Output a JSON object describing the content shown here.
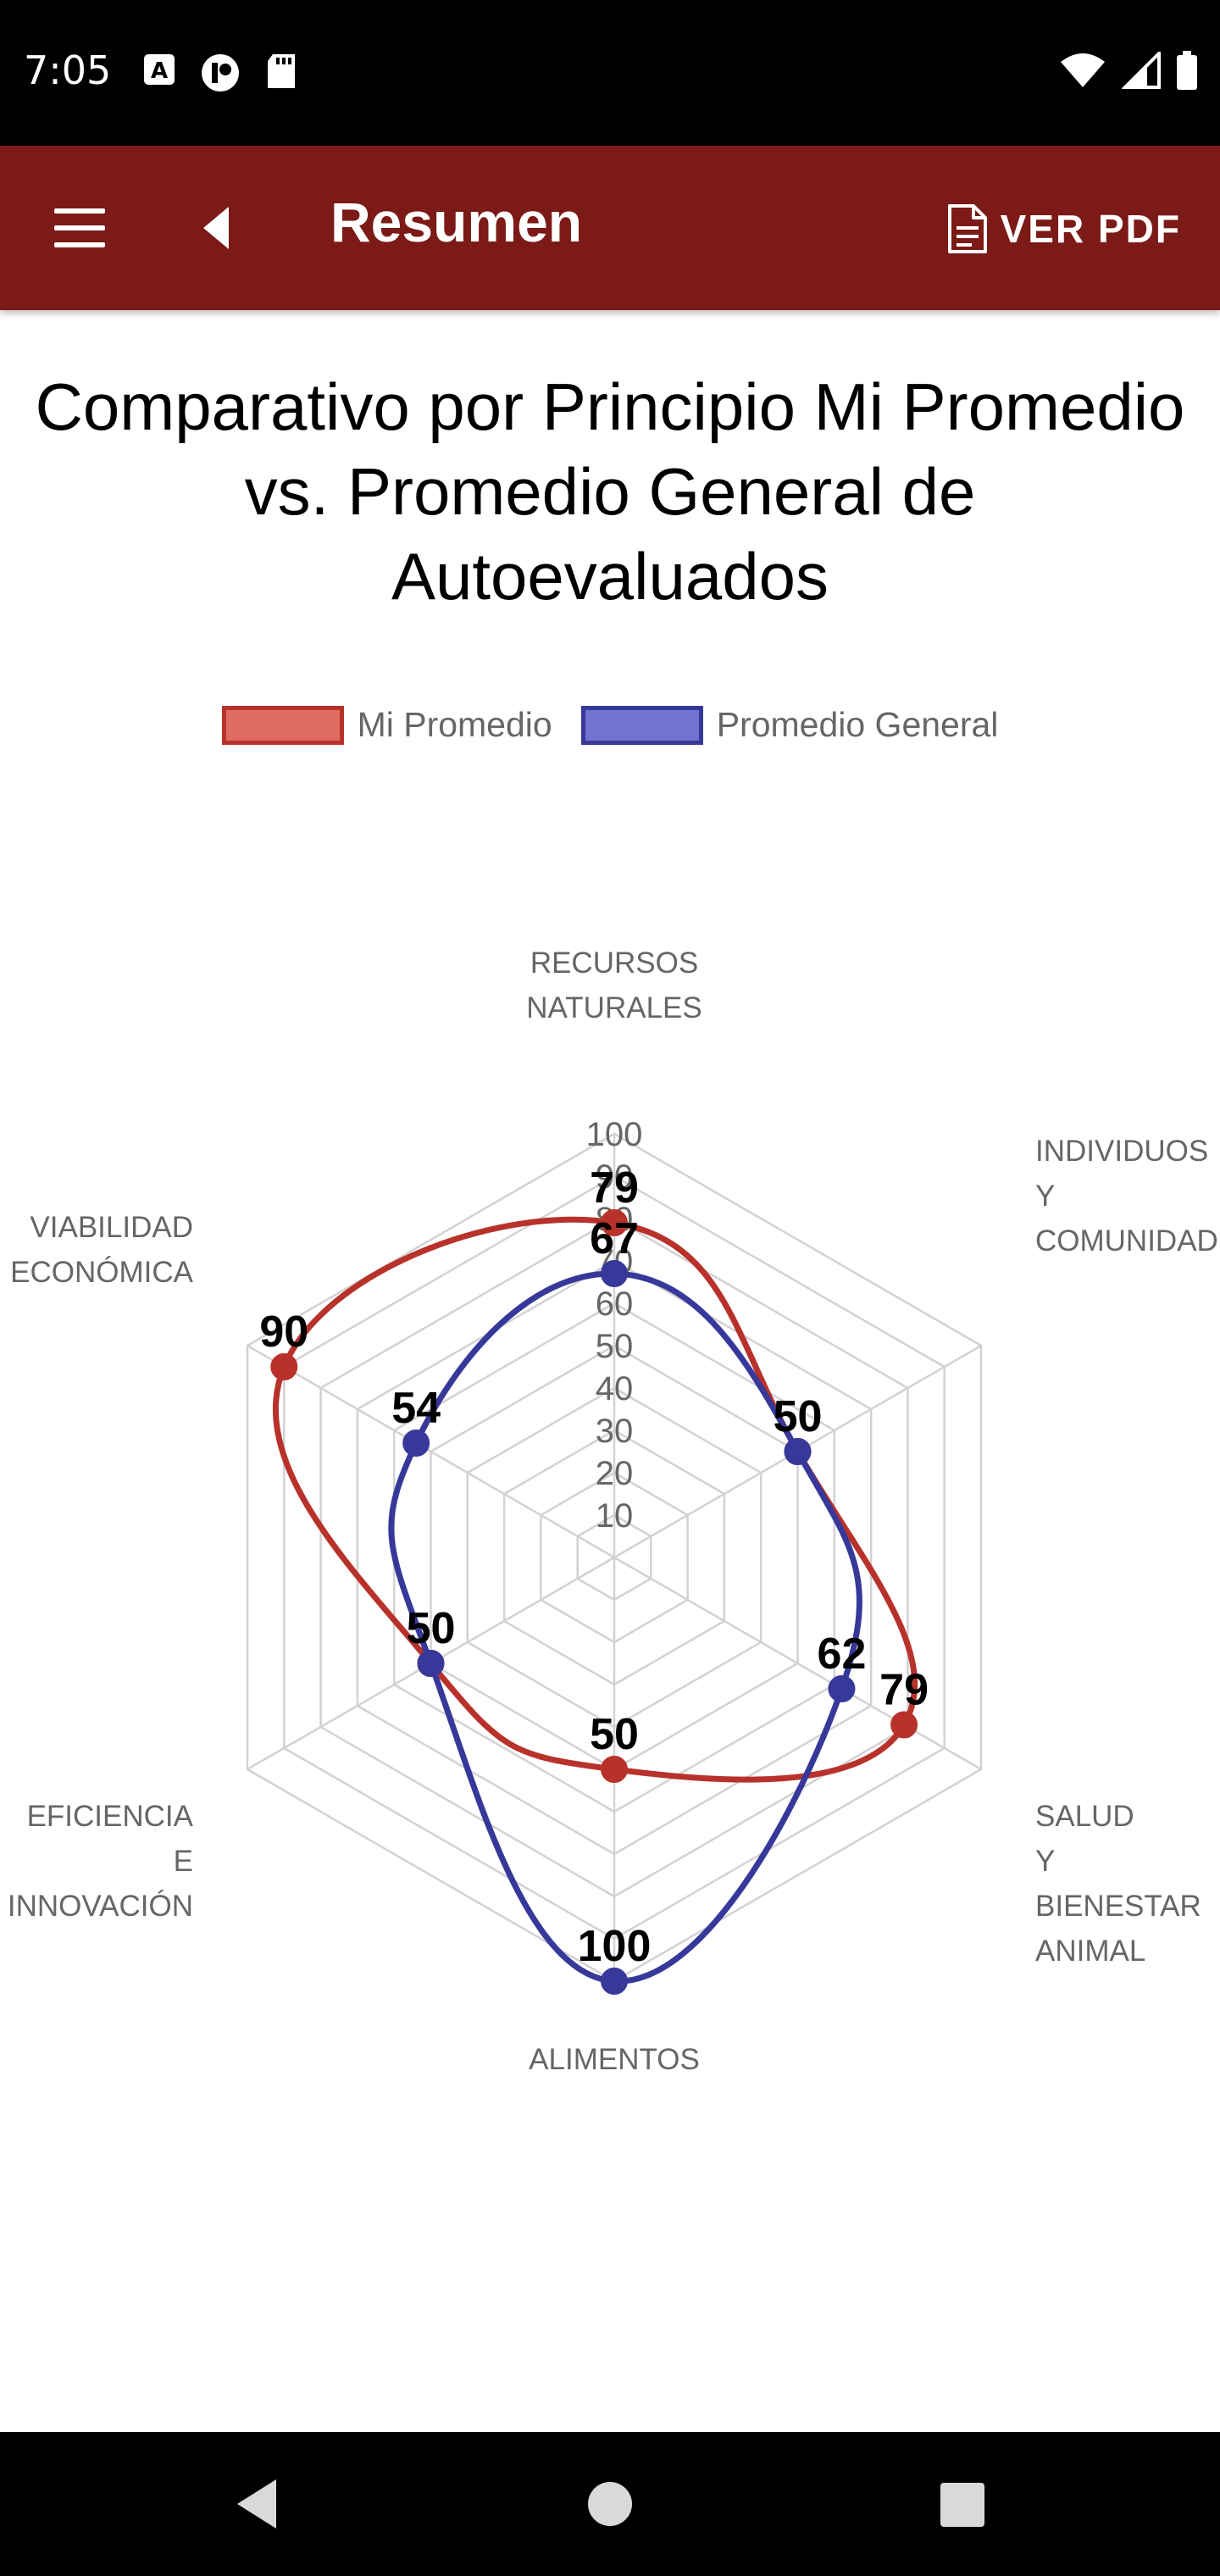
{
  "status_bar": {
    "time": "7:05",
    "left_icons": [
      "font-icon",
      "media-icon",
      "sd-card-icon"
    ],
    "right_icons": [
      "wifi-icon",
      "signal-icon",
      "battery-icon"
    ]
  },
  "app_bar": {
    "title": "Resumen",
    "pdf_label": "VER PDF",
    "background": "#7b1a17"
  },
  "chart_data": {
    "type": "radar",
    "title": "Comparativo por Principio Mi Promedio vs. Promedio General de Autoevaluados",
    "axes": [
      [
        "RECURSOS",
        "NATURALES"
      ],
      [
        "INDIVIDUOS",
        "Y",
        "COMUNIDAD"
      ],
      [
        "SALUD",
        "Y",
        "BIENESTAR",
        "ANIMAL"
      ],
      [
        "ALIMENTOS"
      ],
      [
        "EFICIENCIA",
        "E",
        "INNOVACIÓN"
      ],
      [
        "VIABILIDAD",
        "ECONÓMICA"
      ]
    ],
    "ticks": [
      "10",
      "20",
      "30",
      "40",
      "50",
      "60",
      "70",
      "80",
      "90",
      "100"
    ],
    "range": [
      0,
      100
    ],
    "legend_position": "top",
    "series": [
      {
        "name": "Mi Promedio",
        "values": [
          79,
          50,
          79,
          50,
          50,
          90
        ],
        "color": "#b8322b",
        "fill": "#e06b63"
      },
      {
        "name": "Promedio General",
        "values": [
          67,
          50,
          62,
          100,
          50,
          54
        ],
        "color": "#36399a",
        "fill": "#7074d0"
      }
    ]
  },
  "nav_bar": {
    "buttons": [
      "back-triangle-icon",
      "home-circle-icon",
      "recents-square-icon"
    ]
  }
}
